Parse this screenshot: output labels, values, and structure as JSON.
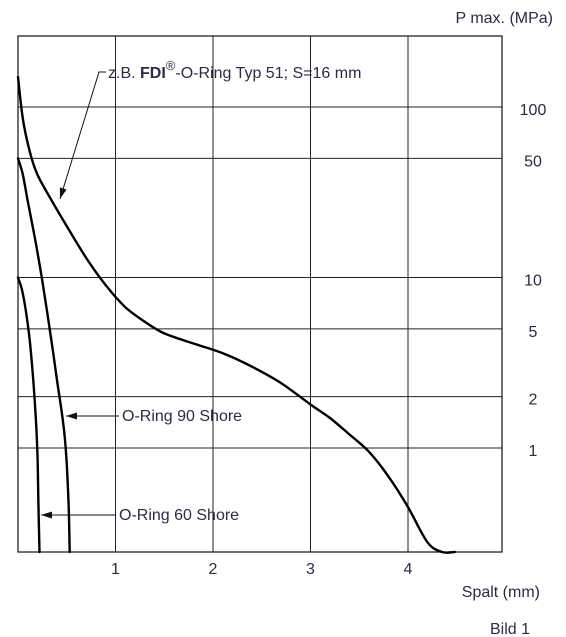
{
  "chart_data": {
    "type": "line",
    "xlabel": "Spalt (mm)",
    "ylabel": "P max. (MPa)",
    "caption": "Bild 1",
    "xlim": [
      0,
      5
    ],
    "x_ticks": [
      1,
      2,
      3,
      4
    ],
    "y_scale": "log",
    "y_ticks": [
      100,
      50,
      10,
      5,
      2,
      1
    ],
    "grid": true,
    "series": [
      {
        "name": "z.B. FDI®-O-Ring Typ 51; S=16 mm",
        "label_prefix": "z.B. ",
        "label_brand": "FDI",
        "label_reg": "®",
        "label_suffix": "-O-Ring Typ 51; S=16 mm",
        "x": [
          0,
          0.05,
          0.12,
          0.2,
          0.35,
          0.5,
          0.7,
          0.9,
          1.1,
          1.3,
          1.5,
          1.8,
          2.1,
          2.4,
          2.7,
          3.0,
          3.2,
          3.4,
          3.6,
          3.8,
          4.0,
          4.2,
          4.35,
          4.48
        ],
        "y": [
          150,
          85,
          55,
          40,
          28,
          20,
          13,
          9,
          6.7,
          5.5,
          4.7,
          4.1,
          3.6,
          3.0,
          2.4,
          1.8,
          1.5,
          1.2,
          0.95,
          0.68,
          0.45,
          0.28,
          0.19,
          0.14
        ]
      },
      {
        "name": "O-Ring 90 Shore",
        "x": [
          0,
          0.05,
          0.1,
          0.15,
          0.2,
          0.25,
          0.3,
          0.35,
          0.4,
          0.45,
          0.48,
          0.5,
          0.52,
          0.53
        ],
        "y": [
          50,
          40,
          28,
          20,
          14,
          9.5,
          6.2,
          4,
          2.5,
          1.6,
          1.15,
          0.8,
          0.45,
          0.14
        ]
      },
      {
        "name": "O-Ring 60 Shore",
        "x": [
          0,
          0.04,
          0.08,
          0.12,
          0.15,
          0.18,
          0.2,
          0.21,
          0.22
        ],
        "y": [
          10,
          8.5,
          6.4,
          4.3,
          2.8,
          1.6,
          0.9,
          0.45,
          0.14
        ]
      }
    ]
  }
}
